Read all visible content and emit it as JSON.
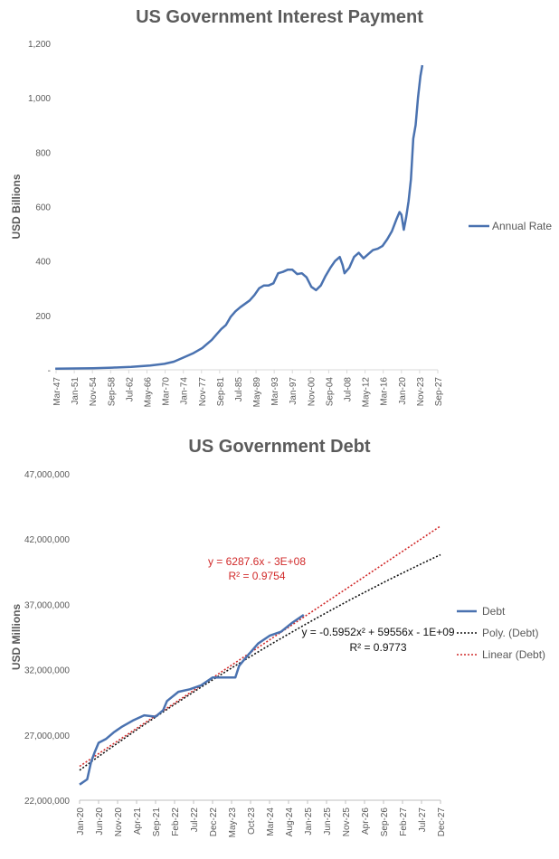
{
  "charts": {
    "interest": {
      "title": "US Government Interest Payment",
      "ylabel": "USD Billions",
      "legend": "Annual Rate"
    },
    "debt": {
      "title": "US Government Debt",
      "ylabel": "USD Millions",
      "legend": [
        "Debt",
        "Poly. (Debt)",
        "Linear (Debt)"
      ],
      "linear_eq": "y = 6287.6x - 3E+08",
      "linear_r2": "R² = 0.9754",
      "poly_eq": "y = -0.5952x² + 59556x - 1E+09",
      "poly_r2": "R² = 0.9773"
    }
  },
  "colors": {
    "series": "#4a72b0",
    "linear_trend": "#d12a2a",
    "poly_trend": "#111111",
    "axis_text": "#595959",
    "title": "#5b5b5b"
  },
  "chart_data": [
    {
      "type": "line",
      "title": "US Government Interest Payment",
      "xlabel": "",
      "ylabel": "USD Billions",
      "ylim": [
        0,
        1200
      ],
      "yticks": [
        "-",
        "200",
        "400",
        "600",
        "800",
        "1,000",
        "1,200"
      ],
      "xticks": [
        "Mar-47",
        "Jan-51",
        "Nov-54",
        "Sep-58",
        "Jul-62",
        "May-66",
        "Mar-70",
        "Jan-74",
        "Nov-77",
        "Sep-81",
        "Jul-85",
        "May-89",
        "Mar-93",
        "Jan-97",
        "Nov-00",
        "Sep-04",
        "Jul-08",
        "May-12",
        "Mar-16",
        "Jan-20",
        "Nov-23",
        "Sep-27"
      ],
      "legend_position": "right",
      "grid": false,
      "series": [
        {
          "name": "Annual Rate",
          "x": [
            1947,
            1951,
            1955,
            1959,
            1963,
            1967,
            1970,
            1972,
            1974,
            1976,
            1978,
            1980,
            1981,
            1982,
            1983,
            1984,
            1985,
            1986,
            1988,
            1989,
            1990,
            1991,
            1992,
            1993,
            1994,
            1995,
            1996,
            1997,
            1998,
            1999,
            2000,
            2001,
            2002,
            2003,
            2004,
            2005,
            2006,
            2007,
            2007.6,
            2008,
            2009,
            2010,
            2011,
            2012,
            2013,
            2014,
            2015,
            2016,
            2017,
            2018,
            2019,
            2019.6,
            2020,
            2020.5,
            2021,
            2021.5,
            2022,
            2022.5,
            2023,
            2023.5,
            2024,
            2024.4
          ],
          "y": [
            4,
            5,
            6,
            8,
            11,
            16,
            22,
            30,
            45,
            60,
            80,
            110,
            130,
            150,
            165,
            195,
            215,
            230,
            255,
            275,
            300,
            310,
            310,
            318,
            355,
            360,
            368,
            368,
            352,
            355,
            340,
            305,
            293,
            310,
            345,
            375,
            400,
            415,
            385,
            355,
            375,
            415,
            430,
            410,
            425,
            440,
            445,
            455,
            480,
            510,
            555,
            580,
            570,
            515,
            560,
            620,
            700,
            850,
            900,
            1000,
            1080,
            1120
          ]
        }
      ]
    },
    {
      "type": "line",
      "title": "US Government Debt",
      "xlabel": "",
      "ylabel": "USD Millions",
      "ylim": [
        22000000,
        47000000
      ],
      "yticks": [
        "22,000,000",
        "27,000,000",
        "32,000,000",
        "37,000,000",
        "42,000,000",
        "47,000,000"
      ],
      "xticks": [
        "Jan-20",
        "Jun-20",
        "Nov-20",
        "Apr-21",
        "Sep-21",
        "Feb-22",
        "Jul-22",
        "Dec-22",
        "May-23",
        "Oct-23",
        "Mar-24",
        "Aug-24",
        "Jan-25",
        "Jun-25",
        "Nov-25",
        "Apr-26",
        "Sep-26",
        "Feb-27",
        "Jul-27",
        "Dec-27"
      ],
      "legend_position": "right",
      "grid": false,
      "series": [
        {
          "name": "Debt",
          "x": [
            "2020-01",
            "2020-03",
            "2020-04",
            "2020-05",
            "2020-06",
            "2020-08",
            "2020-10",
            "2020-12",
            "2021-03",
            "2021-06",
            "2021-09",
            "2021-11",
            "2021-12",
            "2022-03",
            "2022-06",
            "2022-09",
            "2022-12",
            "2023-03",
            "2023-06",
            "2023-07",
            "2023-09",
            "2023-12",
            "2024-03",
            "2024-06",
            "2024-09",
            "2024-12"
          ],
          "y": [
            23200000,
            23600000,
            24900000,
            25700000,
            26400000,
            26700000,
            27200000,
            27600000,
            28100000,
            28500000,
            28400000,
            28900000,
            29600000,
            30300000,
            30500000,
            30800000,
            31400000,
            31400000,
            31400000,
            32300000,
            33000000,
            34000000,
            34600000,
            34900000,
            35600000,
            36200000
          ]
        },
        {
          "name": "Poly. (Debt)",
          "x": [
            "2020-01",
            "2027-12"
          ],
          "y": [
            24300000,
            40800000
          ],
          "style": "dotted"
        },
        {
          "name": "Linear (Debt)",
          "x": [
            "2020-01",
            "2027-12"
          ],
          "y": [
            24600000,
            43000000
          ],
          "style": "dotted"
        }
      ]
    }
  ]
}
